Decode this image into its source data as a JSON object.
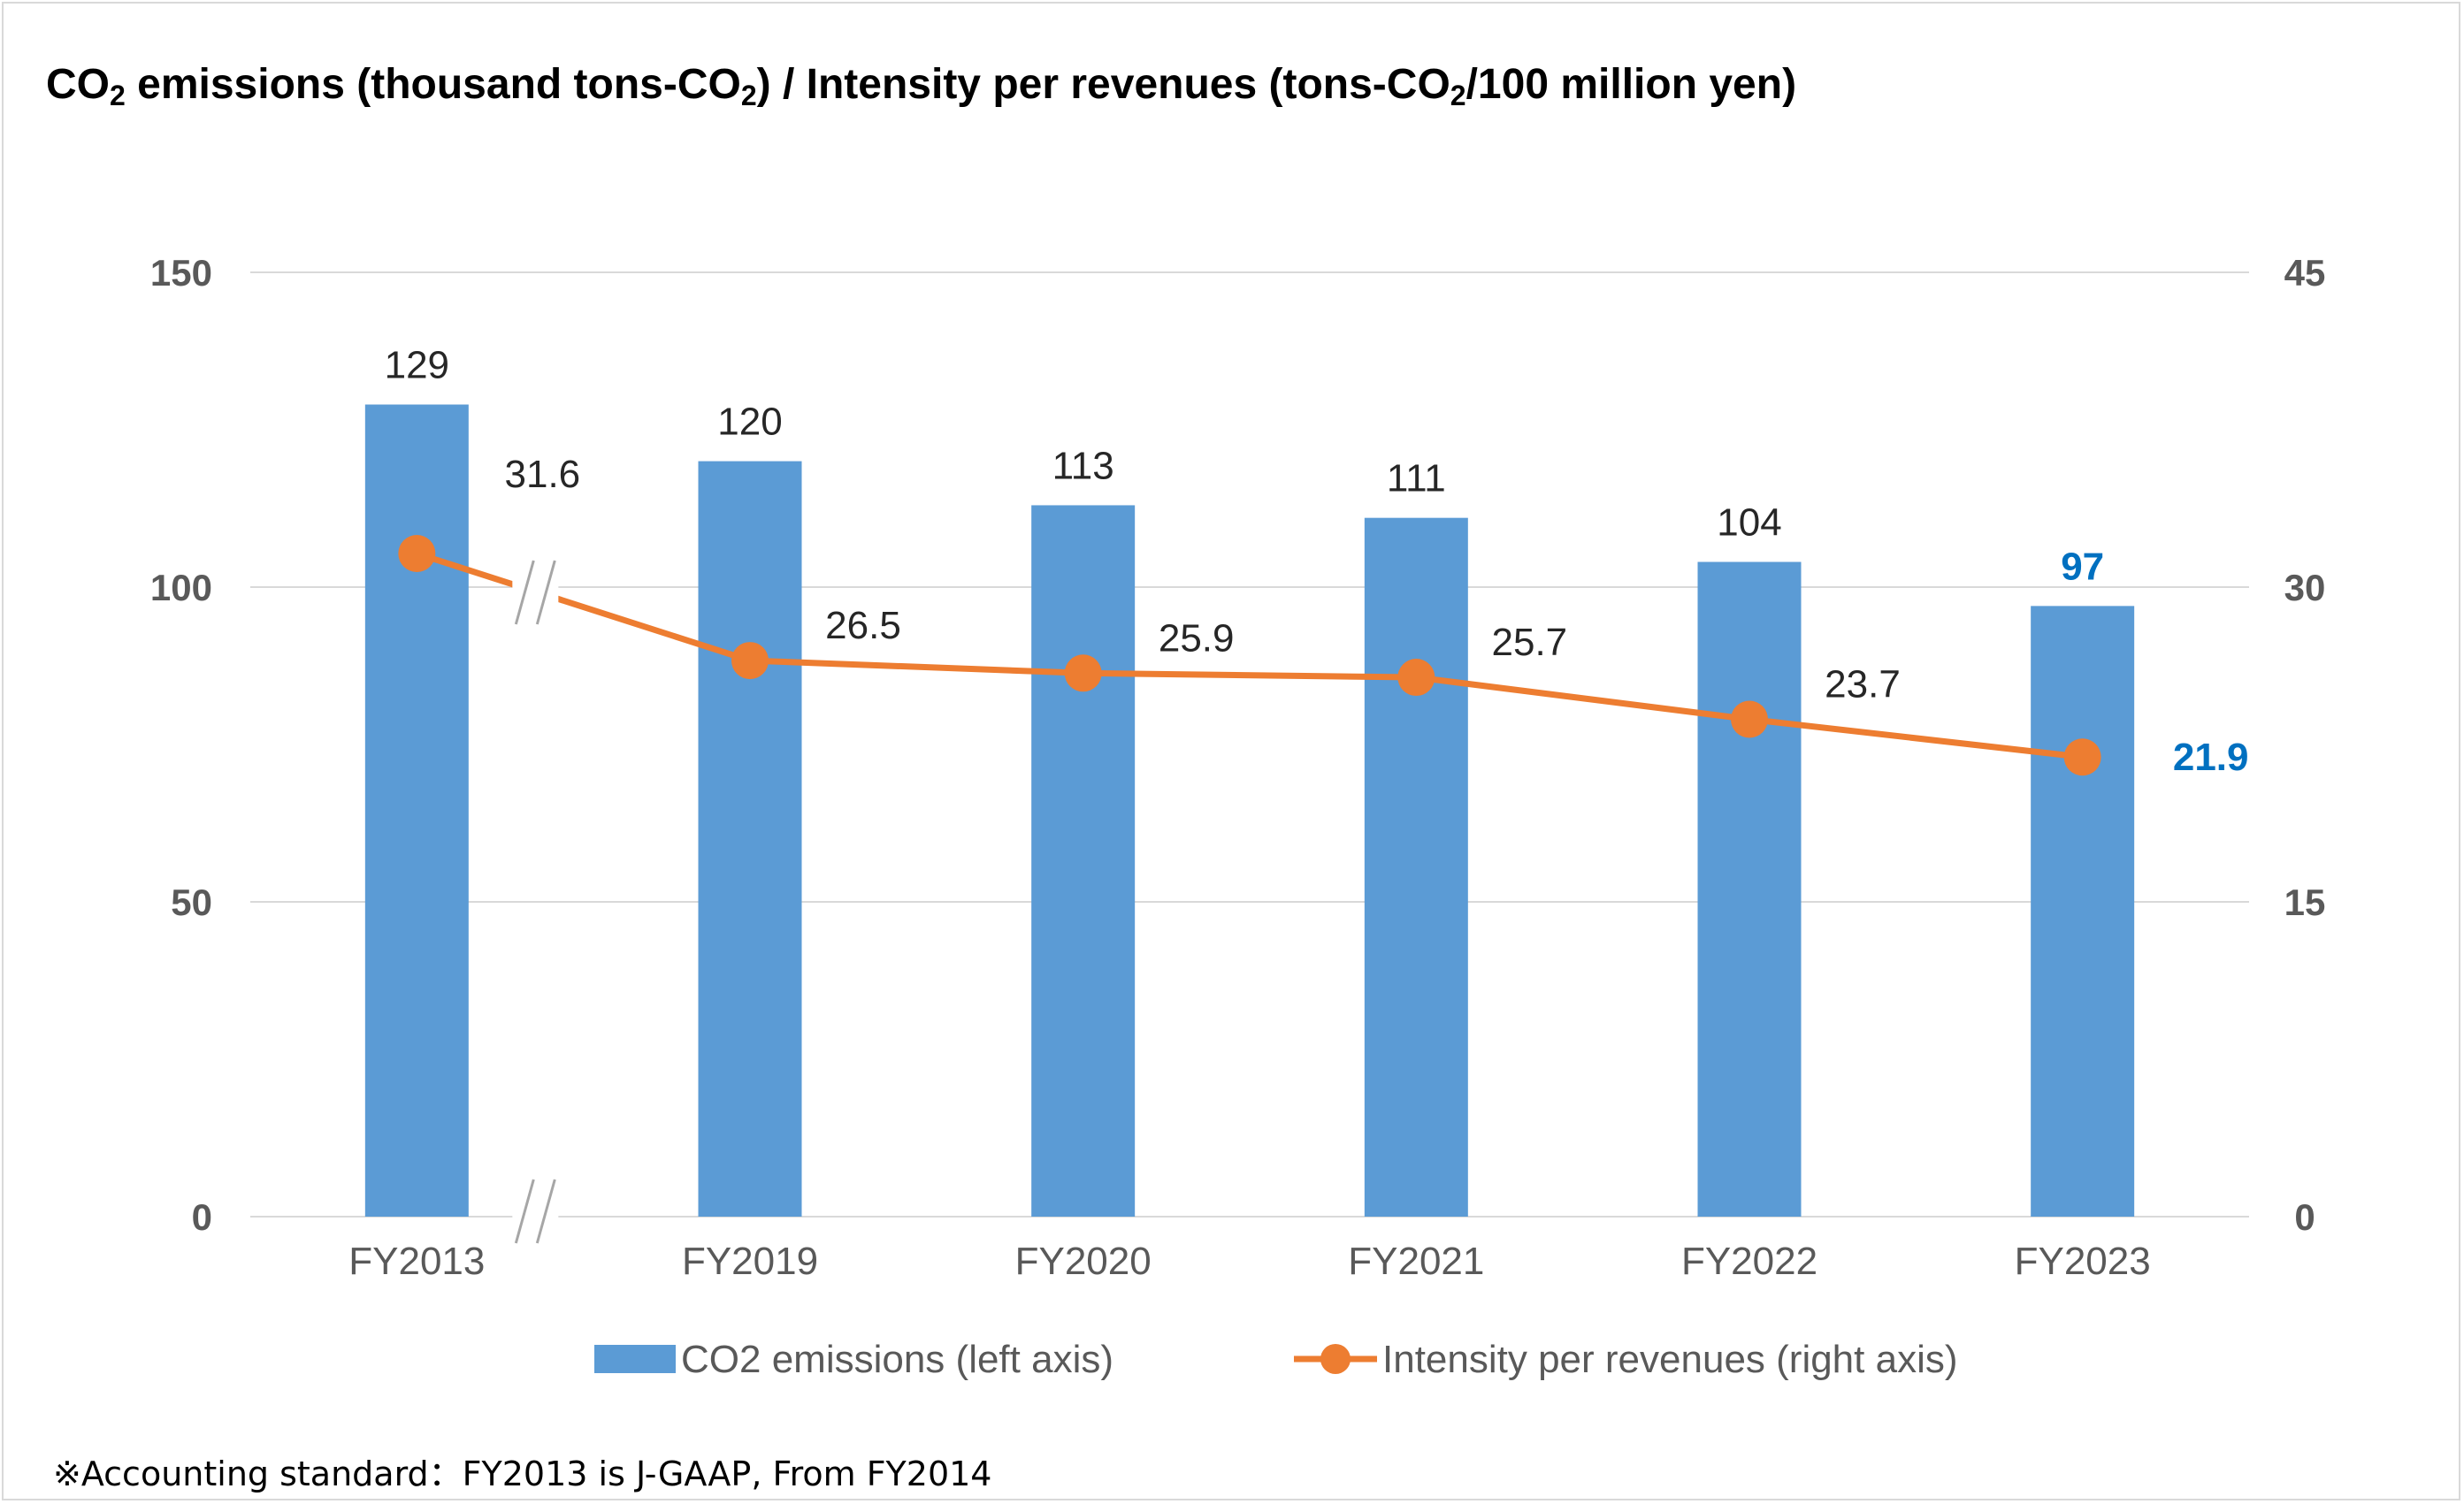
{
  "title": {
    "part1": "CO",
    "part1_sub": "2",
    "part2": " emissions (thousand tons-CO",
    "part2_sub": "2",
    "part3": ") / Intensity per revenues (tons-CO",
    "part3_sub": "2",
    "part4": "/100 million yen)"
  },
  "footnote": "※Accounting standard：FY2013 is J-GAAP, From FY2014",
  "colors": {
    "bar": "#5B9BD5",
    "line": "#ED7D31",
    "highlight": "#0070C0",
    "grid": "#d9d9d9",
    "axis_text": "#595959"
  },
  "chart_data": {
    "type": "bar+line",
    "title": "CO2 emissions (thousand tons-CO2) / Intensity per revenues (tons-CO2/100 million yen)",
    "categories": [
      "FY2013",
      "FY2019",
      "FY2020",
      "FY2021",
      "FY2022",
      "FY2023"
    ],
    "series": [
      {
        "name": "CO2 emissions (left axis)",
        "type": "bar",
        "axis": "left",
        "values": [
          129,
          120,
          113,
          111,
          104,
          97
        ],
        "labels": [
          "129",
          "120",
          "113",
          "111",
          "104",
          "97"
        ]
      },
      {
        "name": "Intensity per revenues (right axis)",
        "type": "line",
        "axis": "right",
        "values": [
          31.6,
          26.5,
          25.9,
          25.7,
          23.7,
          21.9
        ],
        "labels": [
          "31.6",
          "26.5",
          "25.9",
          "25.7",
          "23.7",
          "21.9"
        ]
      }
    ],
    "left_axis": {
      "min": 0,
      "max": 150,
      "ticks": [
        0,
        50,
        100,
        150
      ],
      "tick_labels": [
        "0",
        "50",
        "100",
        "150"
      ]
    },
    "right_axis": {
      "min": 0,
      "max": 45,
      "ticks": [
        0,
        15,
        30,
        45
      ],
      "tick_labels": [
        "0",
        "15",
        "30",
        "45"
      ]
    },
    "highlight_category": "FY2023",
    "axis_break_after": "FY2013",
    "grid": true,
    "legend_position": "bottom"
  }
}
